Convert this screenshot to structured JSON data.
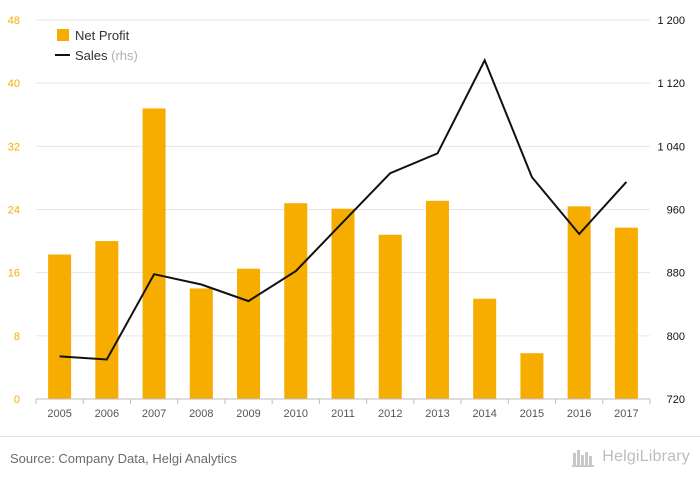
{
  "chart_data": {
    "type": "bar",
    "categories": [
      "2005",
      "2006",
      "2007",
      "2008",
      "2009",
      "2010",
      "2011",
      "2012",
      "2013",
      "2014",
      "2015",
      "2016",
      "2017"
    ],
    "series": [
      {
        "name": "Net Profit",
        "type": "bar",
        "axis": "left",
        "color": "#f6ad00",
        "values": [
          18.3,
          20.0,
          36.8,
          14.0,
          16.5,
          24.8,
          24.1,
          20.8,
          25.1,
          12.7,
          5.8,
          24.4,
          21.7
        ]
      },
      {
        "name": "Sales",
        "name_suffix": "(rhs)",
        "type": "line",
        "axis": "right",
        "color": "#111111",
        "values": [
          774,
          770,
          878,
          865,
          844,
          882,
          944,
          1006,
          1031,
          1149,
          1001,
          929,
          995
        ]
      }
    ],
    "left_axis": {
      "min": 0,
      "max": 48,
      "ticks": [
        "0",
        "8",
        "16",
        "24",
        "32",
        "40",
        "48"
      ],
      "color": "#f6ad00"
    },
    "right_axis": {
      "min": 720,
      "max": 1200,
      "ticks": [
        "720",
        "800",
        "880",
        "960",
        "1 040",
        "1 120",
        "1 200"
      ],
      "color": "#111111"
    },
    "grid": true,
    "legend_position": "top-left"
  },
  "footer": {
    "source": "Source: Company Data, Helgi Analytics",
    "brand": "HelgiLibrary"
  }
}
